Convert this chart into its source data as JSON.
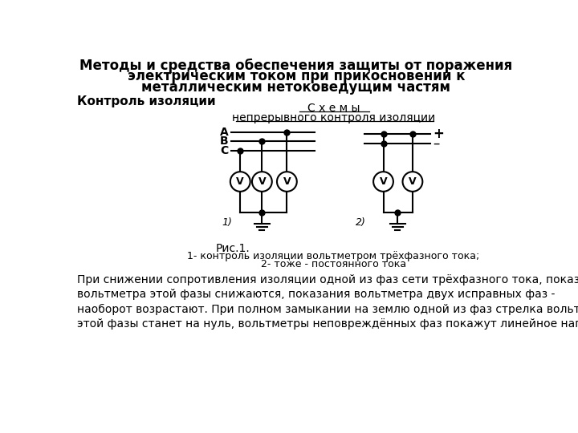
{
  "title_line1": "Методы и средства обеспечения защиты от поражения",
  "title_line2": "электрическим током при прикосновении к",
  "title_line3": "металлическим нетоковедущим частям",
  "subtitle_left": "Контроль изоляции",
  "diagram_title1": "С х е м ы",
  "diagram_title2": "непрерывного контроля изоляции",
  "fig_label": "Рис.1.",
  "fig_caption1": "1- контроль изоляции вольтметром трёхфазного тока;",
  "fig_caption2": "2- тоже - постоянного тока",
  "body_text": "При снижении сопротивления изоляции одной из фаз сети трёхфазного тока, показания\nвольтметра этой фазы снижаются, показания вольтметра двух исправных фаз -\nнаоборот возрастают. При полном замыкании на землю одной из фаз стрелка вольтметра\nэтой фазы станет на нуль, вольтметры неповреждённых фаз покажут линейное напряжение.",
  "bg_color": "#ffffff",
  "fg_color": "#000000",
  "label1": "1)",
  "label2": "2)",
  "label_A": "A",
  "label_B": "B",
  "label_C": "C",
  "label_plus": "+",
  "label_minus": "–"
}
